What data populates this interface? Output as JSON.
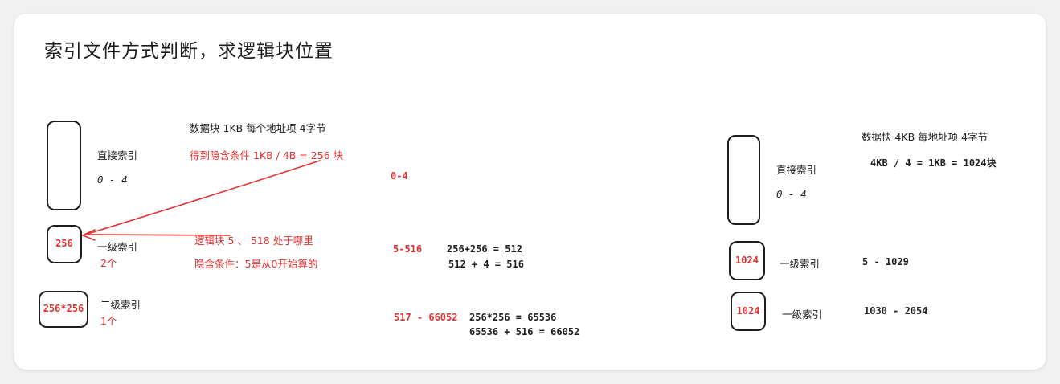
{
  "title": "索引文件方式判断，求逻辑块位置",
  "left": {
    "header": "数据块 1KB   每个地址项 4字节",
    "implied": "得到隐含条件 1KB / 4B = 256 块",
    "direct_label": "直接索引",
    "direct_range": "0 - 4",
    "box1_value": "256",
    "level1_label": "一级索引",
    "level1_count": "2个",
    "box2_value": "256*256",
    "level2_label": "二级索引",
    "level2_count": "1个",
    "question": "逻辑块 5 、 518 处于哪里",
    "note": "隐含条件：5是从0开始算的"
  },
  "middle": {
    "range_direct": "0-4",
    "range_level1": "5-516",
    "calc1_line1": "256+256 = 512",
    "calc1_line2": "512 + 4 = 516",
    "range_level2": "517 - 66052",
    "calc2_line1": "256*256 = 65536",
    "calc2_line2": "65536 + 516 = 66052"
  },
  "right": {
    "header": "数据快 4KB 每地址项 4字节",
    "calc": "4KB / 4 = 1KB = 1024块",
    "direct_label": "直接索引",
    "direct_range": "0 - 4",
    "box1_value": "1024",
    "level1_label": "一级索引",
    "level1_range": "5 - 1029",
    "box2_value": "1024",
    "level2_label": "一级索引",
    "level2_range": "1030 - 2054"
  },
  "colors": {
    "accent_red": "#e03131",
    "ink": "#1e1e1e",
    "background": "#f1f1f1",
    "card": "#ffffff"
  }
}
